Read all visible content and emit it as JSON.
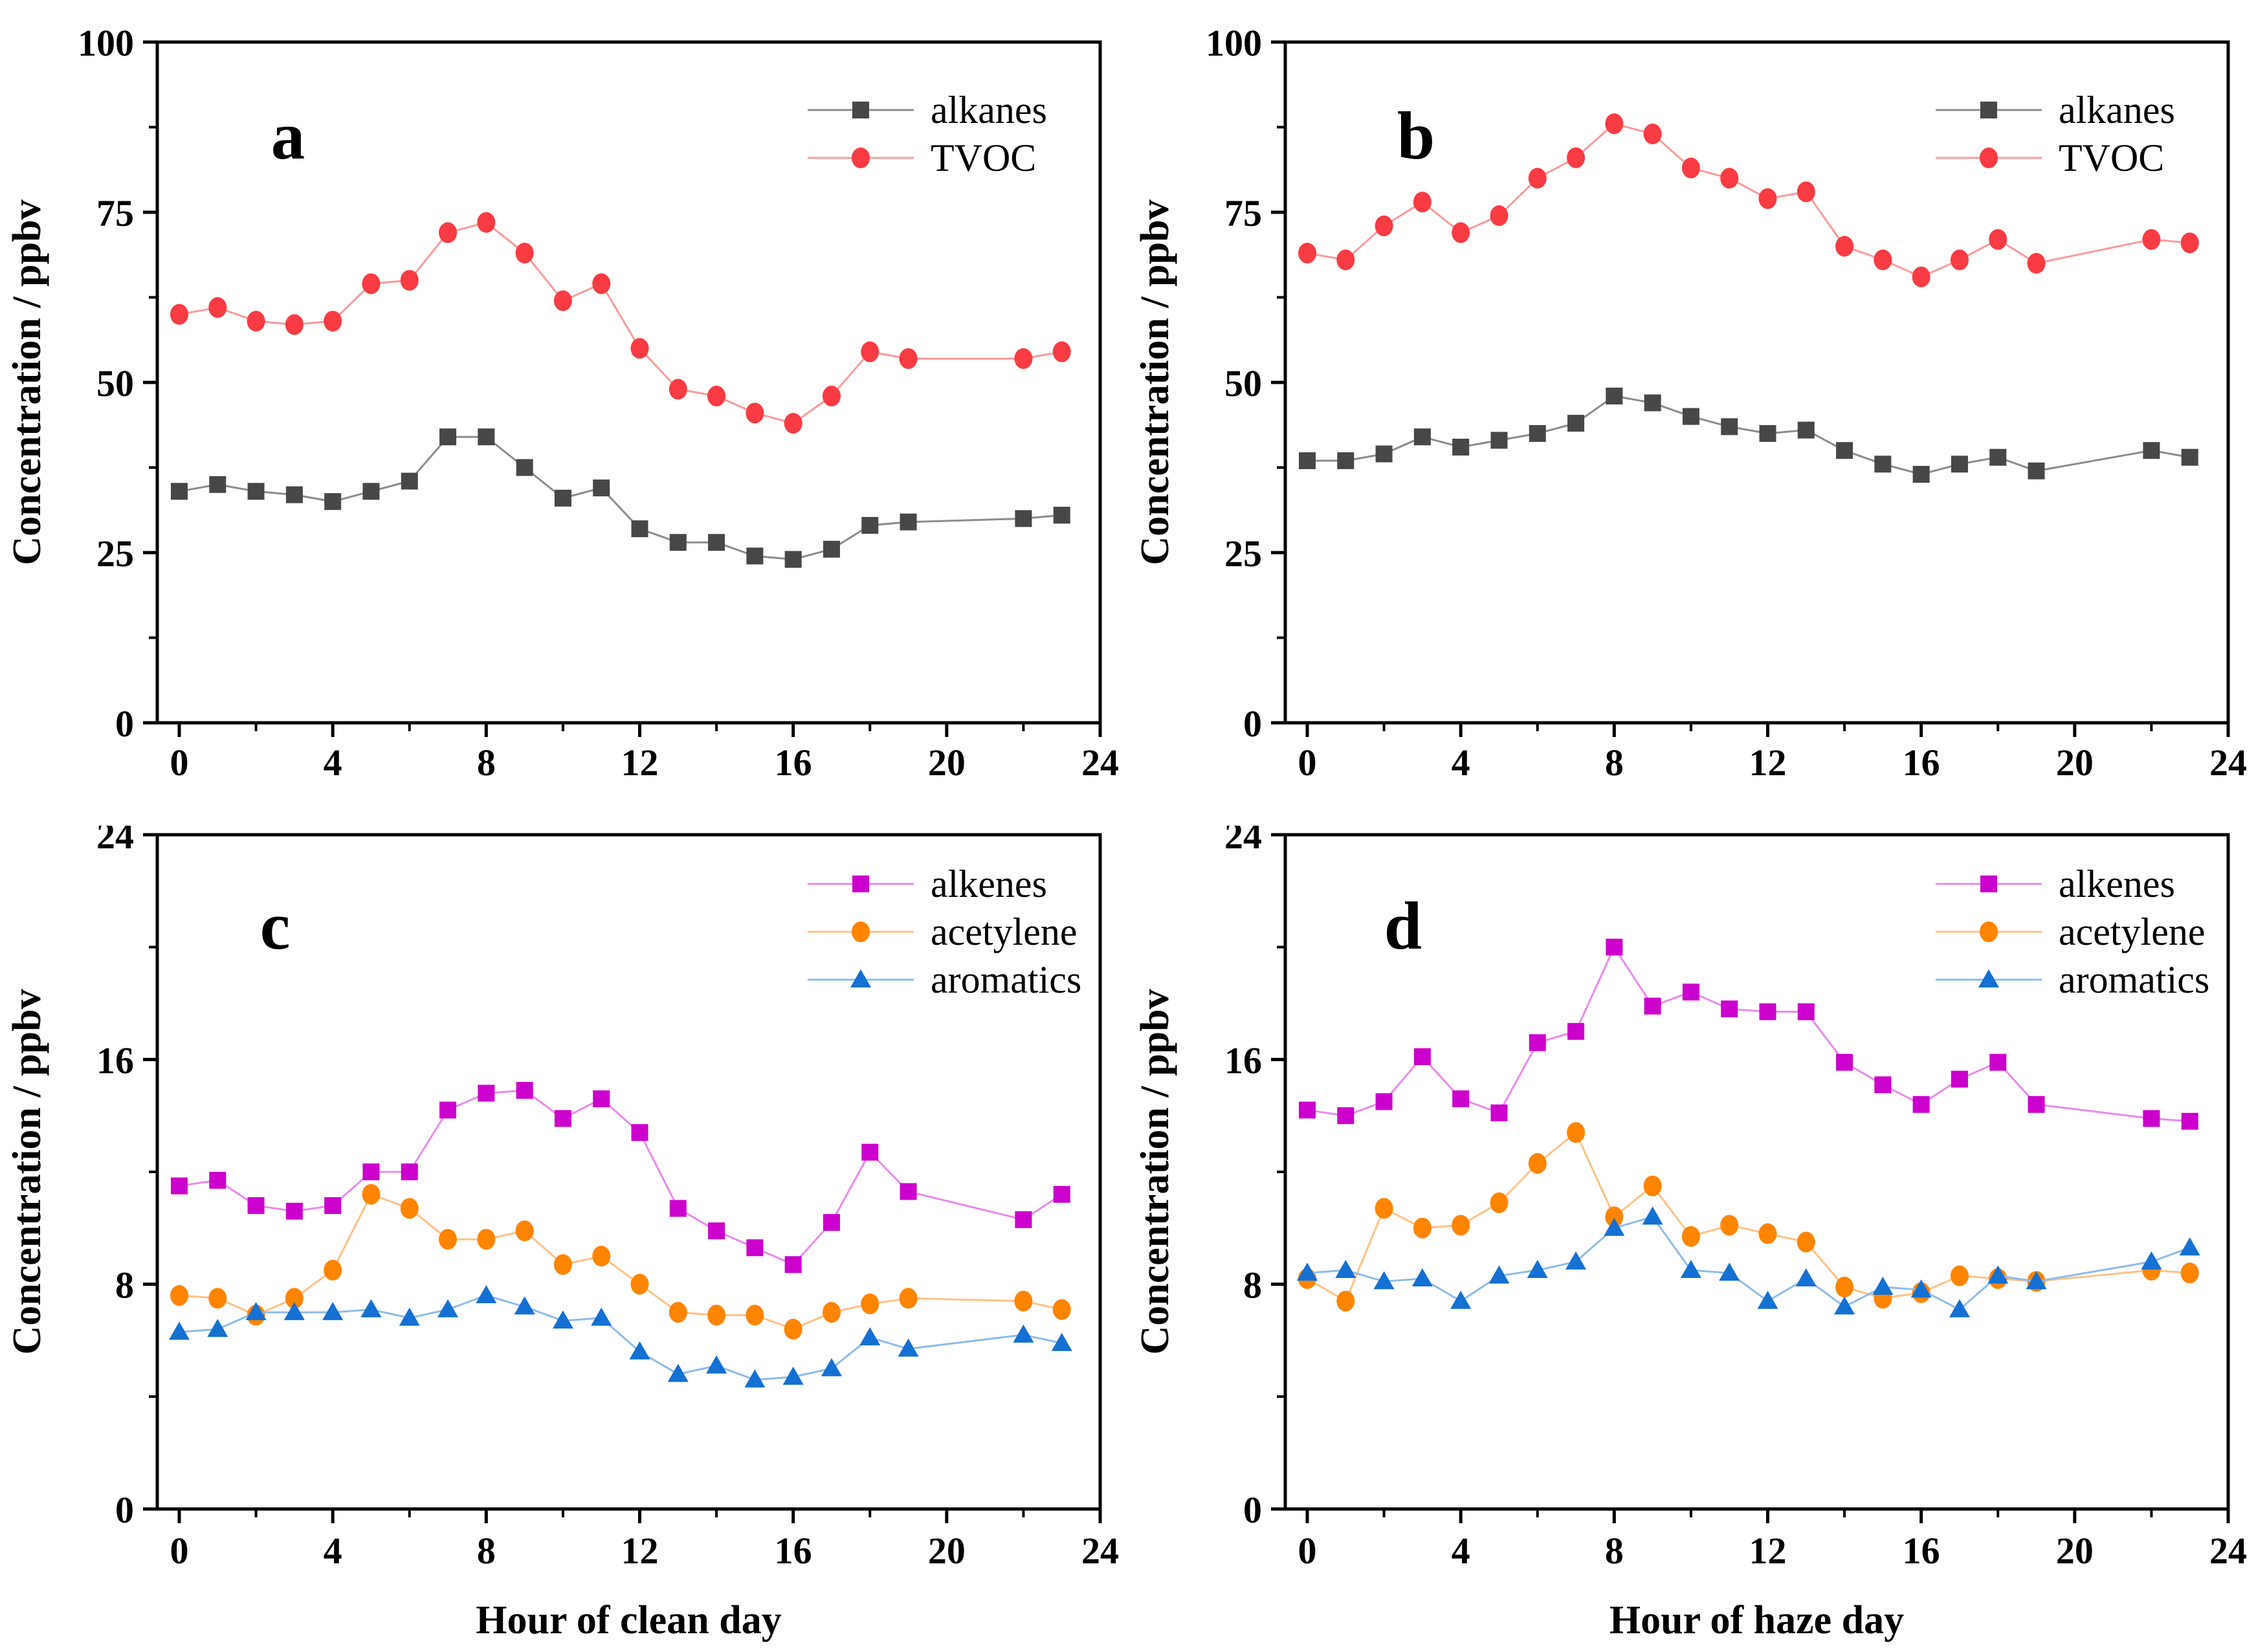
{
  "figure": {
    "background": "#ffffff",
    "axis_color": "#000000",
    "panel_letters": [
      "a",
      "b",
      "c",
      "d"
    ]
  },
  "chart_data": [
    {
      "type": "line",
      "panel_label": "a",
      "title": "",
      "xlabel": "",
      "ylabel": "Concentration / ppbv",
      "x_hours": [
        0,
        1,
        2,
        3,
        4,
        5,
        6,
        7,
        8,
        9,
        10,
        11,
        12,
        13,
        14,
        15,
        16,
        17,
        18,
        19,
        20,
        21,
        22,
        23
      ],
      "xlim": [
        0,
        24
      ],
      "ylim": [
        0,
        100
      ],
      "xticks": [
        0,
        4,
        8,
        12,
        16,
        20,
        24
      ],
      "xminorticks": [
        2,
        6,
        10,
        14,
        18,
        22
      ],
      "yticks": [
        0,
        25,
        50,
        75,
        100
      ],
      "yminorticks": [
        12.5,
        37.5,
        62.5,
        87.5
      ],
      "grid": false,
      "legend_position": "top-right-inside",
      "series": [
        {
          "name": "alkanes",
          "marker": "square",
          "marker_color": "#474747",
          "line_color": "#8c8c8c",
          "values": [
            34,
            35,
            34,
            33.5,
            32.5,
            34,
            35.5,
            42,
            42,
            37.5,
            33,
            34.5,
            28.5,
            26.5,
            26.5,
            24.5,
            24,
            25.5,
            29,
            29.5,
            null,
            null,
            30,
            30.5
          ]
        },
        {
          "name": "TVOC",
          "marker": "circle",
          "marker_color": "#f93b43",
          "line_color": "#fb9b9b",
          "values": [
            60,
            61,
            59,
            58.5,
            59,
            64.5,
            65,
            72,
            73.5,
            69,
            62,
            64.5,
            55,
            49,
            48,
            45.5,
            44,
            48,
            54.5,
            53.5,
            null,
            null,
            53.5,
            54.5
          ]
        }
      ]
    },
    {
      "type": "line",
      "panel_label": "b",
      "title": "",
      "xlabel": "",
      "ylabel": "Concentration / ppbv",
      "x_hours": [
        0,
        1,
        2,
        3,
        4,
        5,
        6,
        7,
        8,
        9,
        10,
        11,
        12,
        13,
        14,
        15,
        16,
        17,
        18,
        19,
        20,
        21,
        22,
        23
      ],
      "xlim": [
        0,
        24
      ],
      "ylim": [
        0,
        100
      ],
      "xticks": [
        0,
        4,
        8,
        12,
        16,
        20,
        24
      ],
      "xminorticks": [
        2,
        6,
        10,
        14,
        18,
        22
      ],
      "yticks": [
        0,
        25,
        50,
        75,
        100
      ],
      "yminorticks": [
        12.5,
        37.5,
        62.5,
        87.5
      ],
      "grid": false,
      "legend_position": "top-right-inside",
      "series": [
        {
          "name": "alkanes",
          "marker": "square",
          "marker_color": "#474747",
          "line_color": "#8c8c8c",
          "values": [
            38.5,
            38.5,
            39.5,
            42,
            40.5,
            41.5,
            42.5,
            44,
            48,
            47,
            45,
            43.5,
            42.5,
            43,
            40,
            38,
            36.5,
            38,
            39,
            37,
            null,
            null,
            40,
            39
          ]
        },
        {
          "name": "TVOC",
          "marker": "circle",
          "marker_color": "#f93b43",
          "line_color": "#fb9b9b",
          "values": [
            69,
            68,
            73,
            76.5,
            72,
            74.5,
            80,
            83,
            88,
            86.5,
            81.5,
            80,
            77,
            78,
            70,
            68,
            65.5,
            68,
            71,
            67.5,
            null,
            null,
            71,
            70.5
          ]
        }
      ]
    },
    {
      "type": "line",
      "panel_label": "c",
      "title": "",
      "xlabel": "Hour of clean day",
      "ylabel": "Concentration / ppbv",
      "x_hours": [
        0,
        1,
        2,
        3,
        4,
        5,
        6,
        7,
        8,
        9,
        10,
        11,
        12,
        13,
        14,
        15,
        16,
        17,
        18,
        19,
        20,
        21,
        22,
        23
      ],
      "xlim": [
        0,
        24
      ],
      "ylim": [
        0,
        24
      ],
      "xticks": [
        0,
        4,
        8,
        12,
        16,
        20,
        24
      ],
      "xminorticks": [
        2,
        6,
        10,
        14,
        18,
        22
      ],
      "yticks": [
        0,
        8,
        16,
        24
      ],
      "yminorticks": [
        4,
        12,
        20
      ],
      "grid": false,
      "legend_position": "top-right-inside",
      "series": [
        {
          "name": "alkenes",
          "marker": "square",
          "marker_color": "#cc00cc",
          "line_color": "#ea8bea",
          "values": [
            11.5,
            11.7,
            10.8,
            10.6,
            10.8,
            12,
            12,
            14.2,
            14.8,
            14.9,
            13.9,
            14.6,
            13.4,
            10.7,
            9.9,
            9.3,
            8.7,
            10.2,
            12.7,
            11.3,
            null,
            null,
            10.3,
            11.2
          ]
        },
        {
          "name": "acetylene",
          "marker": "circle",
          "marker_color": "#ff8400",
          "line_color": "#ffc285",
          "values": [
            7.6,
            7.5,
            6.9,
            7.5,
            8.5,
            11.2,
            10.7,
            9.6,
            9.6,
            9.9,
            8.7,
            9,
            8,
            7,
            6.9,
            6.9,
            6.4,
            7,
            7.3,
            7.5,
            null,
            null,
            7.4,
            7.1
          ]
        },
        {
          "name": "aromatics",
          "marker": "triangle",
          "marker_color": "#1470d2",
          "line_color": "#8fbce8",
          "values": [
            6.3,
            6.4,
            7,
            7,
            7,
            7.1,
            6.8,
            7.1,
            7.6,
            7.2,
            6.7,
            6.8,
            5.6,
            4.8,
            5.1,
            4.6,
            4.7,
            5,
            6.1,
            5.7,
            null,
            null,
            6.2,
            5.9
          ]
        }
      ]
    },
    {
      "type": "line",
      "panel_label": "d",
      "title": "",
      "xlabel": "Hour of haze day",
      "ylabel": "Concentration / ppbv",
      "x_hours": [
        0,
        1,
        2,
        3,
        4,
        5,
        6,
        7,
        8,
        9,
        10,
        11,
        12,
        13,
        14,
        15,
        16,
        17,
        18,
        19,
        20,
        21,
        22,
        23
      ],
      "xlim": [
        0,
        24
      ],
      "ylim": [
        0,
        24
      ],
      "xticks": [
        0,
        4,
        8,
        12,
        16,
        20,
        24
      ],
      "xminorticks": [
        2,
        6,
        10,
        14,
        18,
        22
      ],
      "yticks": [
        0,
        8,
        16,
        24
      ],
      "yminorticks": [
        4,
        12,
        20
      ],
      "grid": false,
      "legend_position": "top-right-inside",
      "series": [
        {
          "name": "alkenes",
          "marker": "square",
          "marker_color": "#cc00cc",
          "line_color": "#ea8bea",
          "values": [
            14.2,
            14,
            14.5,
            16.1,
            14.6,
            14.1,
            16.6,
            17,
            20,
            17.9,
            18.4,
            17.8,
            17.7,
            17.7,
            15.9,
            15.1,
            14.4,
            15.3,
            15.9,
            14.4,
            null,
            null,
            13.9,
            13.8
          ]
        },
        {
          "name": "acetylene",
          "marker": "circle",
          "marker_color": "#ff8400",
          "line_color": "#ffc285",
          "values": [
            8.2,
            7.4,
            10.7,
            10,
            10.1,
            10.9,
            12.3,
            13.4,
            10.4,
            11.5,
            9.7,
            10.1,
            9.8,
            9.5,
            7.9,
            7.5,
            7.7,
            8.3,
            8.2,
            8.1,
            null,
            null,
            8.5,
            8.4
          ]
        },
        {
          "name": "aromatics",
          "marker": "triangle",
          "marker_color": "#1470d2",
          "line_color": "#8fbce8",
          "values": [
            8.4,
            8.5,
            8.1,
            8.2,
            7.4,
            8.3,
            8.5,
            8.8,
            10,
            10.4,
            8.5,
            8.4,
            7.4,
            8.2,
            7.2,
            7.9,
            7.8,
            7.1,
            8.3,
            8.1,
            null,
            null,
            8.8,
            9.3
          ]
        }
      ]
    }
  ]
}
